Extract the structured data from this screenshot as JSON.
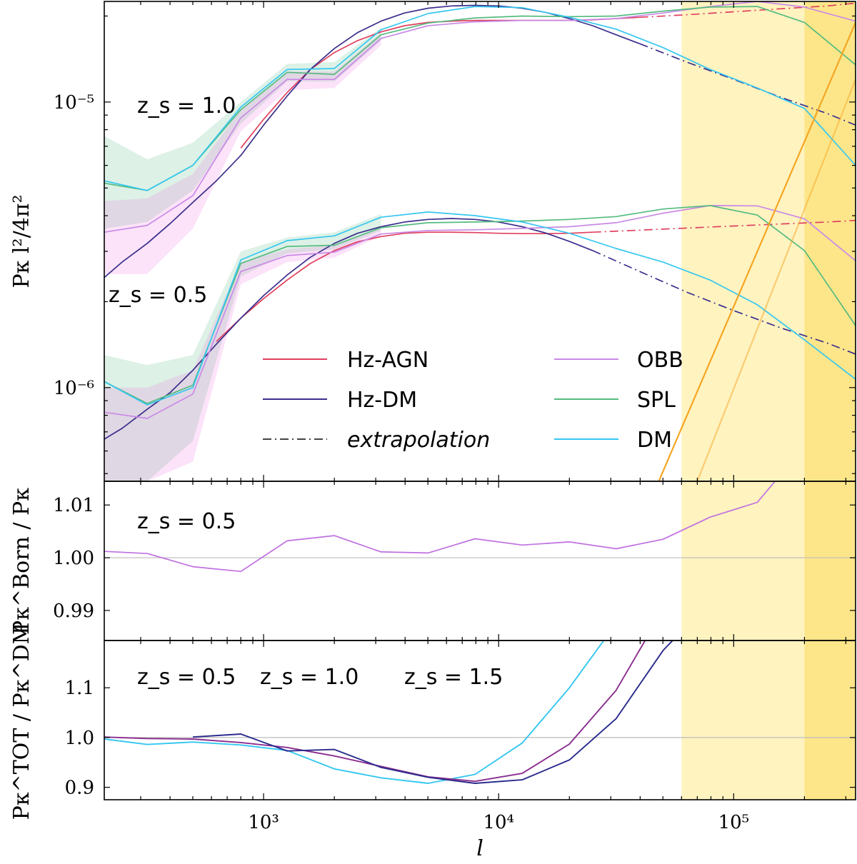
{
  "chart_data": [
    {
      "panel": "top",
      "type": "line",
      "xscale": "log",
      "yscale": "log",
      "xlim": [
        210,
        330000
      ],
      "ylim": [
        4.7e-07,
        2.25e-05
      ],
      "ylabel": "Pκ l²/4π²",
      "ytick_labels": [
        "10⁻⁶",
        "10⁻⁵"
      ],
      "ytick_values": [
        1e-06,
        1e-05
      ],
      "annotations": [
        {
          "text": "z_s = 1.0",
          "x": 250,
          "y": 9.6e-06
        },
        {
          "text": "z_s = 0.5",
          "x": 200,
          "y": 1.92e-06
        }
      ],
      "legend": [
        {
          "label": "Hz-AGN",
          "color": "#e0405e",
          "style": "solid"
        },
        {
          "label": "Hz-DM",
          "color": "#3a2f8c",
          "style": "solid"
        },
        {
          "label": "extrapolation",
          "color": "#444444",
          "style": "dashdot",
          "italic": true
        },
        {
          "label": "OBB",
          "color": "#c98ae6",
          "style": "solid"
        },
        {
          "label": "SPL",
          "color": "#55bb80",
          "style": "solid"
        },
        {
          "label": "DM",
          "color": "#35c7f0",
          "style": "solid"
        }
      ],
      "bands": [
        {
          "x0": 60000,
          "x1": 200000,
          "color": "#fff3c0"
        },
        {
          "x0": 200000,
          "x1": 330000,
          "color": "#fde68a"
        }
      ],
      "series": [
        {
          "name": "Hz-AGN z=1.0",
          "color": "#e0405e",
          "style": "solid",
          "x": [
            800,
            1000,
            1260,
            1580,
            2000,
            2510,
            3160,
            3980,
            5010,
            6310,
            7940,
            10000,
            12600,
            15800,
            20000,
            25100,
            31600,
            39800
          ],
          "y": [
            6.9e-06,
            8.7e-06,
            1.08e-05,
            1.3e-05,
            1.49e-05,
            1.64e-05,
            1.76e-05,
            1.85e-05,
            1.9e-05,
            1.92e-05,
            1.93e-05,
            1.93e-05,
            1.93e-05,
            1.93e-05,
            1.93e-05,
            1.94e-05,
            1.96e-05,
            1.98e-05
          ]
        },
        {
          "name": "Hz-AGN z=1.0 extrapolation",
          "color": "#e0405e",
          "style": "dashdot",
          "x": [
            39800,
            63100,
            100000,
            158000,
            251000,
            330000
          ],
          "y": [
            1.98e-05,
            2.02e-05,
            2.07e-05,
            2.12e-05,
            2.17e-05,
            2.22e-05
          ]
        },
        {
          "name": "Hz-DM z=1.0",
          "color": "#3a2f8c",
          "style": "solid",
          "x": [
            210,
            250,
            320,
            400,
            500,
            630,
            800,
            1000,
            1260,
            1580,
            2000,
            2510,
            3160,
            3980,
            5010,
            6310,
            7940,
            10000,
            12600,
            15800,
            20000,
            25100,
            31600,
            39800
          ],
          "y": [
            2.43e-06,
            2.75e-06,
            3.2e-06,
            3.75e-06,
            4.45e-06,
            5.3e-06,
            6.5e-06,
            8.3e-06,
            1.05e-05,
            1.3e-05,
            1.54e-05,
            1.75e-05,
            1.92e-05,
            2.05e-05,
            2.13e-05,
            2.17e-05,
            2.18e-05,
            2.17e-05,
            2.13e-05,
            2.06e-05,
            1.96e-05,
            1.85e-05,
            1.72e-05,
            1.6e-05
          ]
        },
        {
          "name": "Hz-DM z=1.0 extrapolation",
          "color": "#3a2f8c",
          "style": "dashdot",
          "x": [
            39800,
            63100,
            100000,
            158000,
            251000,
            330000
          ],
          "y": [
            1.6e-05,
            1.38e-05,
            1.2e-05,
            1.04e-05,
            9.1e-06,
            8.3e-06
          ]
        },
        {
          "name": "OBB z=1.0",
          "color": "#c98ae6",
          "style": "solid",
          "x": [
            210,
            320,
            500,
            800,
            1260,
            2000,
            3160,
            5010,
            7940,
            12600,
            20000,
            31600,
            50100,
            79400,
            126000,
            200000,
            330000
          ],
          "y": [
            3.5e-06,
            3.7e-06,
            4.7e-06,
            8.8e-06,
            1.2e-05,
            1.2e-05,
            1.67e-05,
            1.85e-05,
            1.91e-05,
            1.93e-05,
            1.93e-05,
            1.96e-05,
            2.05e-05,
            2.16e-05,
            2.25e-05,
            2.15e-05,
            1.92e-05
          ]
        },
        {
          "name": "SPL z=1.0",
          "color": "#55bb80",
          "style": "solid",
          "x": [
            210,
            320,
            500,
            800,
            1260,
            2000,
            3160,
            5010,
            7940,
            12600,
            20000,
            31600,
            50100,
            79400,
            126000,
            200000,
            330000
          ],
          "y": [
            5.2e-06,
            4.9e-06,
            6e-06,
            9.4e-06,
            1.27e-05,
            1.25e-05,
            1.72e-05,
            1.89e-05,
            1.97e-05,
            2e-05,
            1.99e-05,
            2e-05,
            2.08e-05,
            2.15e-05,
            2.16e-05,
            1.9e-05,
            1.35e-05
          ]
        },
        {
          "name": "DM z=1.0",
          "color": "#35c7f0",
          "style": "solid",
          "x": [
            210,
            320,
            500,
            800,
            1260,
            2000,
            3160,
            5010,
            7940,
            12600,
            20000,
            31600,
            50100,
            79400,
            126000,
            200000,
            330000
          ],
          "y": [
            5.3e-06,
            4.9e-06,
            6e-06,
            9.6e-06,
            1.3e-05,
            1.31e-05,
            1.79e-05,
            2.04e-05,
            2.16e-05,
            2.14e-05,
            1.98e-05,
            1.8e-05,
            1.55e-05,
            1.3e-05,
            1.12e-05,
            9.5e-06,
            6e-06
          ]
        },
        {
          "name": "Hz-AGN z=0.5",
          "color": "#e0405e",
          "style": "solid",
          "x": [
            630,
            800,
            1000,
            1260,
            1580,
            2000,
            2510,
            3160,
            3980,
            5010,
            6310,
            7940,
            10000,
            12600,
            15800,
            20000,
            25100
          ],
          "y": [
            1.45e-06,
            1.75e-06,
            2.05e-06,
            2.38e-06,
            2.72e-06,
            3.02e-06,
            3.24e-06,
            3.38e-06,
            3.47e-06,
            3.5e-06,
            3.5e-06,
            3.49e-06,
            3.47e-06,
            3.46e-06,
            3.46e-06,
            3.47e-06,
            3.5e-06
          ]
        },
        {
          "name": "Hz-AGN z=0.5 extrapolation",
          "color": "#e0405e",
          "style": "dashdot",
          "x": [
            25100,
            39800,
            63100,
            100000,
            158000,
            251000,
            330000
          ],
          "y": [
            3.5e-06,
            3.56e-06,
            3.62e-06,
            3.68e-06,
            3.74e-06,
            3.8e-06,
            3.85e-06
          ]
        },
        {
          "name": "Hz-DM z=0.5",
          "color": "#3a2f8c",
          "style": "solid",
          "x": [
            210,
            250,
            320,
            400,
            500,
            630,
            800,
            1000,
            1260,
            1580,
            2000,
            2510,
            3160,
            3980,
            5010,
            6310,
            7940,
            10000,
            12600,
            15800,
            20000,
            25100
          ],
          "y": [
            6.6e-07,
            7.2e-07,
            8.4e-07,
            9.6e-07,
            1.15e-06,
            1.42e-06,
            1.75e-06,
            2.1e-06,
            2.48e-06,
            2.86e-06,
            3.2e-06,
            3.47e-06,
            3.66e-06,
            3.8e-06,
            3.88e-06,
            3.91e-06,
            3.88e-06,
            3.8e-06,
            3.66e-06,
            3.48e-06,
            3.25e-06,
            3.02e-06
          ]
        },
        {
          "name": "Hz-DM z=0.5 extrapolation",
          "color": "#3a2f8c",
          "style": "dashdot",
          "x": [
            25100,
            39800,
            63100,
            100000,
            158000,
            251000,
            330000
          ],
          "y": [
            3.02e-06,
            2.55e-06,
            2.16e-06,
            1.86e-06,
            1.62e-06,
            1.43e-06,
            1.31e-06
          ]
        },
        {
          "name": "OBB z=0.5",
          "color": "#c98ae6",
          "style": "solid",
          "x": [
            210,
            320,
            500,
            800,
            1260,
            2000,
            3160,
            5010,
            7940,
            12600,
            20000,
            31600,
            50100,
            79400,
            126000,
            200000,
            330000
          ],
          "y": [
            8.2e-07,
            7.8e-07,
            9.5e-07,
            2.55e-06,
            2.9e-06,
            2.98e-06,
            3.45e-06,
            3.55e-06,
            3.57e-06,
            3.61e-06,
            3.66e-06,
            3.78e-06,
            4.08e-06,
            4.34e-06,
            4.33e-06,
            3.9e-06,
            2.78e-06
          ]
        },
        {
          "name": "SPL z=0.5",
          "color": "#55bb80",
          "style": "solid",
          "x": [
            210,
            320,
            500,
            800,
            1260,
            2000,
            3160,
            5010,
            7940,
            12600,
            20000,
            31600,
            50100,
            79400,
            126000,
            200000,
            330000
          ],
          "y": [
            1.05e-06,
            8.8e-07,
            1.02e-06,
            2.72e-06,
            3.12e-06,
            3.15e-06,
            3.63e-06,
            3.78e-06,
            3.8e-06,
            3.83e-06,
            3.88e-06,
            3.97e-06,
            4.22e-06,
            4.34e-06,
            4.02e-06,
            3.02e-06,
            1.65e-06
          ]
        },
        {
          "name": "DM z=0.5",
          "color": "#35c7f0",
          "style": "solid",
          "x": [
            210,
            320,
            500,
            800,
            1260,
            2000,
            3160,
            5010,
            7940,
            12600,
            20000,
            31600,
            50100,
            79400,
            126000,
            200000,
            330000
          ],
          "y": [
            1.05e-06,
            8.7e-07,
            1e-06,
            2.8e-06,
            3.27e-06,
            3.4e-06,
            3.95e-06,
            4.12e-06,
            4e-06,
            3.8e-06,
            3.47e-06,
            3.07e-06,
            2.75e-06,
            2.38e-06,
            1.95e-06,
            1.47e-06,
            1.07e-06
          ]
        }
      ],
      "shaded_regions": [
        {
          "color": "#55bb80",
          "opacity": 0.2,
          "x": [
            210,
            320,
            500,
            800,
            1260,
            2000,
            3160
          ],
          "lower": [
            3.6e-06,
            3.8e-06,
            4.9e-06,
            8.4e-06,
            1.18e-05,
            1.18e-05,
            1.64e-05
          ],
          "upper": [
            7.6e-06,
            6.3e-06,
            7.2e-06,
            1e-05,
            1.36e-05,
            1.38e-05,
            1.82e-05
          ]
        },
        {
          "color": "#ee66dd",
          "opacity": 0.18,
          "x": [
            210,
            320,
            500,
            800,
            1260,
            2000,
            3160
          ],
          "lower": [
            2.5e-06,
            2.5e-06,
            3.6e-06,
            7.9e-06,
            1.1e-05,
            1.12e-05,
            1.58e-05
          ],
          "upper": [
            4.5e-06,
            4.6e-06,
            5.6e-06,
            9.4e-06,
            1.28e-05,
            1.28e-05,
            1.74e-05
          ]
        },
        {
          "color": "#55bb80",
          "opacity": 0.2,
          "x": [
            210,
            320,
            500,
            800,
            1260,
            2000,
            3160
          ],
          "lower": [
            4.7e-07,
            4.7e-07,
            6.5e-07,
            2.45e-06,
            2.95e-06,
            3.05e-06,
            3.55e-06
          ],
          "upper": [
            1.3e-06,
            1.2e-06,
            1.3e-06,
            3e-06,
            3.35e-06,
            3.5e-06,
            4.05e-06
          ]
        },
        {
          "color": "#ee66dd",
          "opacity": 0.18,
          "x": [
            210,
            320,
            500,
            800,
            1260,
            2000,
            3160
          ],
          "lower": [
            4.7e-07,
            4.7e-07,
            5.5e-07,
            2.3e-06,
            2.75e-06,
            2.85e-06,
            3.4e-06
          ],
          "upper": [
            1e-06,
            1e-06,
            1.15e-06,
            2.75e-06,
            3.05e-06,
            3.15e-06,
            3.6e-06
          ]
        }
      ],
      "extra_lines": [
        {
          "color": "#f5a623",
          "opacity": 1.0,
          "x": [
            48000,
            330000
          ],
          "y": [
            4.7e-07,
            1.9e-05
          ]
        },
        {
          "color": "#f5a623",
          "opacity": 0.5,
          "x": [
            70000,
            330000
          ],
          "y": [
            4.7e-07,
            1.2e-05
          ]
        }
      ]
    },
    {
      "panel": "middle",
      "type": "line",
      "xscale": "log",
      "yscale": "linear",
      "xlim": [
        210,
        330000
      ],
      "ylim": [
        0.9843,
        1.0145
      ],
      "ylabel": "Pκ^Born / Pκ",
      "ytick_labels": [
        "0.99",
        "1.00",
        "1.01"
      ],
      "ytick_values": [
        0.99,
        1.0,
        1.01
      ],
      "reference_line": 1.0,
      "annotation": "z_s = 0.5",
      "series": [
        {
          "name": "Born ratio z=0.5",
          "color": "#c070e0",
          "x": [
            210,
            320,
            500,
            800,
            1260,
            2000,
            3160,
            5010,
            7940,
            12600,
            20000,
            31600,
            50100,
            79400,
            126000,
            150000
          ],
          "y": [
            1.0012,
            1.0008,
            0.9983,
            0.9974,
            1.0032,
            1.0042,
            1.0011,
            1.0009,
            1.0036,
            1.0024,
            1.003,
            1.0017,
            1.0035,
            1.0077,
            1.0105,
            1.0145
          ]
        }
      ]
    },
    {
      "panel": "bottom",
      "type": "line",
      "xscale": "log",
      "yscale": "linear",
      "xlim": [
        210,
        330000
      ],
      "ylim": [
        0.875,
        1.195
      ],
      "xlabel": "l",
      "ylabel": "Pκ^TOT / Pκ^DM",
      "xtick_labels": [
        "10³",
        "10⁴",
        "10⁵"
      ],
      "xtick_values": [
        1000,
        10000,
        100000
      ],
      "ytick_labels": [
        "0.9",
        "1.0",
        "1.1"
      ],
      "ytick_values": [
        0.9,
        1.0,
        1.1
      ],
      "reference_line": 1.0,
      "annotations": [
        {
          "text": "z_s = 0.5",
          "color": "#35c7f0"
        },
        {
          "text": "z_s = 1.0",
          "color": "#8b2d8f"
        },
        {
          "text": "z_s = 1.5",
          "color": "#2a2a8c"
        }
      ],
      "series": [
        {
          "name": "z_s = 0.5",
          "color": "#35c7f0",
          "x": [
            210,
            320,
            500,
            800,
            1260,
            2000,
            3160,
            5010,
            7940,
            12600,
            20000,
            28000
          ],
          "y": [
            0.997,
            0.986,
            0.991,
            0.985,
            0.974,
            0.937,
            0.919,
            0.908,
            0.926,
            0.989,
            1.1,
            1.195
          ]
        },
        {
          "name": "z_s = 1.0",
          "color": "#8b2d8f",
          "x": [
            210,
            320,
            500,
            800,
            1260,
            2000,
            3160,
            5010,
            7940,
            12600,
            20000,
            31600,
            42000
          ],
          "y": [
            1.001,
            0.998,
            0.997,
            0.99,
            0.98,
            0.963,
            0.942,
            0.921,
            0.912,
            0.928,
            0.987,
            1.095,
            1.195
          ]
        },
        {
          "name": "z_s = 1.5",
          "color": "#2a2a8c",
          "x": [
            500,
            800,
            1260,
            2000,
            3160,
            5010,
            7940,
            12600,
            20000,
            31600,
            50100,
            55000
          ],
          "y": [
            1.001,
            1.007,
            0.973,
            0.976,
            0.94,
            0.92,
            0.908,
            0.915,
            0.955,
            1.038,
            1.175,
            1.195
          ]
        }
      ]
    }
  ]
}
